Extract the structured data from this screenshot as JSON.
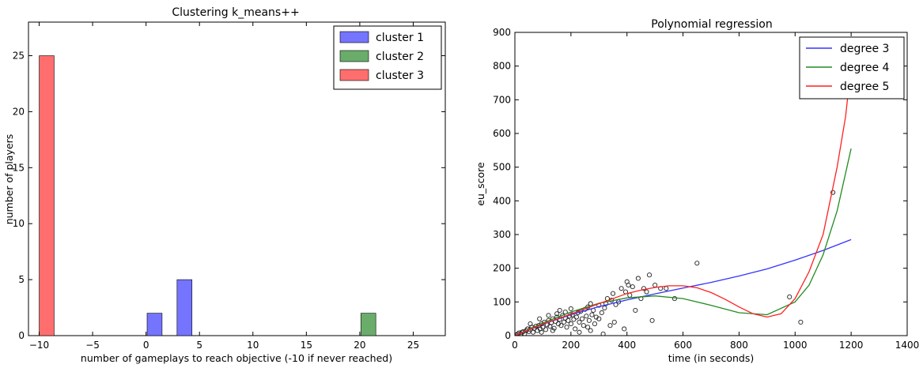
{
  "chart_data": [
    {
      "type": "bar",
      "title": "Clustering k_means++",
      "xlabel": "number of gameplays to reach objective (-10 if never reached)",
      "ylabel": "number of players",
      "xlim": [
        -11,
        28
      ],
      "ylim": [
        0,
        28
      ],
      "xticks": [
        "−10",
        "−5",
        "0",
        "5",
        "10",
        "15",
        "20",
        "25"
      ],
      "xtick_values": [
        -10,
        -5,
        0,
        5,
        10,
        15,
        20,
        25
      ],
      "yticks": [
        "0",
        "5",
        "10",
        "15",
        "20",
        "25"
      ],
      "ytick_values": [
        0,
        5,
        10,
        15,
        20,
        25
      ],
      "grid": false,
      "legend_position": "top-right",
      "bar_width": 1.4,
      "series": [
        {
          "name": "cluster 1",
          "color": "#7474ff",
          "points": [
            {
              "x": 0.8,
              "y": 2
            },
            {
              "x": 3.6,
              "y": 5
            }
          ]
        },
        {
          "name": "cluster 2",
          "color": "#6aad6a",
          "points": [
            {
              "x": 20.8,
              "y": 2
            }
          ]
        },
        {
          "name": "cluster 3",
          "color": "#ff6e6e",
          "points": [
            {
              "x": -9.3,
              "y": 25
            }
          ]
        }
      ]
    },
    {
      "type": "scatter",
      "title": "Polynomial regression",
      "xlabel": "time (in seconds)",
      "ylabel": "eu_score",
      "xlim": [
        0,
        1400
      ],
      "ylim": [
        0,
        900
      ],
      "xticks": [
        "0",
        "200",
        "400",
        "600",
        "800",
        "1000",
        "1200",
        "1400"
      ],
      "xtick_values": [
        0,
        200,
        400,
        600,
        800,
        1000,
        1200,
        1400
      ],
      "yticks": [
        "0",
        "100",
        "200",
        "300",
        "400",
        "500",
        "600",
        "700",
        "800",
        "900"
      ],
      "ytick_values": [
        0,
        100,
        200,
        300,
        400,
        500,
        600,
        700,
        800,
        900
      ],
      "grid": false,
      "legend_position": "top-right",
      "scatter_points": [
        [
          5,
          2
        ],
        [
          10,
          5
        ],
        [
          15,
          8
        ],
        [
          20,
          4
        ],
        [
          25,
          10
        ],
        [
          30,
          12
        ],
        [
          35,
          6
        ],
        [
          40,
          15
        ],
        [
          45,
          20
        ],
        [
          50,
          12
        ],
        [
          55,
          18
        ],
        [
          60,
          25
        ],
        [
          65,
          10
        ],
        [
          70,
          22
        ],
        [
          75,
          28
        ],
        [
          80,
          15
        ],
        [
          85,
          30
        ],
        [
          90,
          20
        ],
        [
          95,
          35
        ],
        [
          100,
          25
        ],
        [
          105,
          40
        ],
        [
          110,
          18
        ],
        [
          115,
          32
        ],
        [
          120,
          45
        ],
        [
          125,
          28
        ],
        [
          130,
          38
        ],
        [
          135,
          50
        ],
        [
          140,
          22
        ],
        [
          145,
          42
        ],
        [
          150,
          55
        ],
        [
          155,
          35
        ],
        [
          160,
          48
        ],
        [
          165,
          30
        ],
        [
          170,
          60
        ],
        [
          175,
          40
        ],
        [
          180,
          52
        ],
        [
          185,
          25
        ],
        [
          190,
          45
        ],
        [
          195,
          58
        ],
        [
          200,
          35
        ],
        [
          205,
          62
        ],
        [
          210,
          48
        ],
        [
          215,
          20
        ],
        [
          220,
          55
        ],
        [
          225,
          68
        ],
        [
          230,
          40
        ],
        [
          235,
          72
        ],
        [
          240,
          50
        ],
        [
          245,
          30
        ],
        [
          250,
          78
        ],
        [
          255,
          58
        ],
        [
          260,
          85
        ],
        [
          265,
          45
        ],
        [
          270,
          95
        ],
        [
          275,
          62
        ],
        [
          280,
          75
        ],
        [
          285,
          35
        ],
        [
          290,
          55
        ],
        [
          300,
          90
        ],
        [
          310,
          68
        ],
        [
          315,
          5
        ],
        [
          320,
          82
        ],
        [
          325,
          95
        ],
        [
          330,
          110
        ],
        [
          340,
          30
        ],
        [
          345,
          105
        ],
        [
          350,
          125
        ],
        [
          355,
          40
        ],
        [
          360,
          92
        ],
        [
          370,
          100
        ],
        [
          380,
          140
        ],
        [
          390,
          20
        ],
        [
          395,
          130
        ],
        [
          400,
          160
        ],
        [
          405,
          150
        ],
        [
          410,
          120
        ],
        [
          420,
          145
        ],
        [
          430,
          75
        ],
        [
          440,
          170
        ],
        [
          450,
          110
        ],
        [
          460,
          140
        ],
        [
          470,
          130
        ],
        [
          480,
          180
        ],
        [
          490,
          45
        ],
        [
          500,
          150
        ],
        [
          520,
          140
        ],
        [
          540,
          140
        ],
        [
          570,
          110
        ],
        [
          650,
          215
        ],
        [
          980,
          115
        ],
        [
          1020,
          40
        ],
        [
          1135,
          425
        ],
        [
          88,
          50
        ],
        [
          135,
          15
        ],
        [
          180,
          70
        ],
        [
          230,
          10
        ],
        [
          260,
          25
        ],
        [
          150,
          65
        ],
        [
          200,
          80
        ],
        [
          120,
          60
        ],
        [
          160,
          75
        ],
        [
          95,
          10
        ],
        [
          55,
          35
        ],
        [
          300,
          50
        ],
        [
          270,
          15
        ]
      ],
      "series": [
        {
          "name": "degree 3",
          "color": "#3333ff",
          "x": [
            0,
            100,
            200,
            300,
            400,
            500,
            600,
            700,
            800,
            900,
            1000,
            1100,
            1200
          ],
          "y": [
            0,
            34,
            62,
            86,
            106,
            124,
            141,
            158,
            177,
            198,
            224,
            253,
            285
          ]
        },
        {
          "name": "degree 4",
          "color": "#228b22",
          "x": [
            0,
            100,
            200,
            300,
            400,
            500,
            600,
            700,
            800,
            900,
            1000,
            1050,
            1100,
            1150,
            1200
          ],
          "y": [
            0,
            38,
            70,
            96,
            112,
            118,
            110,
            90,
            68,
            62,
            100,
            150,
            240,
            370,
            555
          ]
        },
        {
          "name": "degree 5",
          "color": "#ff2020",
          "x": [
            0,
            100,
            200,
            300,
            400,
            450,
            500,
            550,
            600,
            650,
            700,
            750,
            800,
            850,
            900,
            950,
            1000,
            1050,
            1100,
            1150,
            1180,
            1200
          ],
          "y": [
            0,
            35,
            64,
            95,
            125,
            135,
            143,
            148,
            148,
            142,
            128,
            108,
            85,
            65,
            55,
            65,
            110,
            190,
            300,
            500,
            650,
            800
          ]
        }
      ]
    }
  ]
}
